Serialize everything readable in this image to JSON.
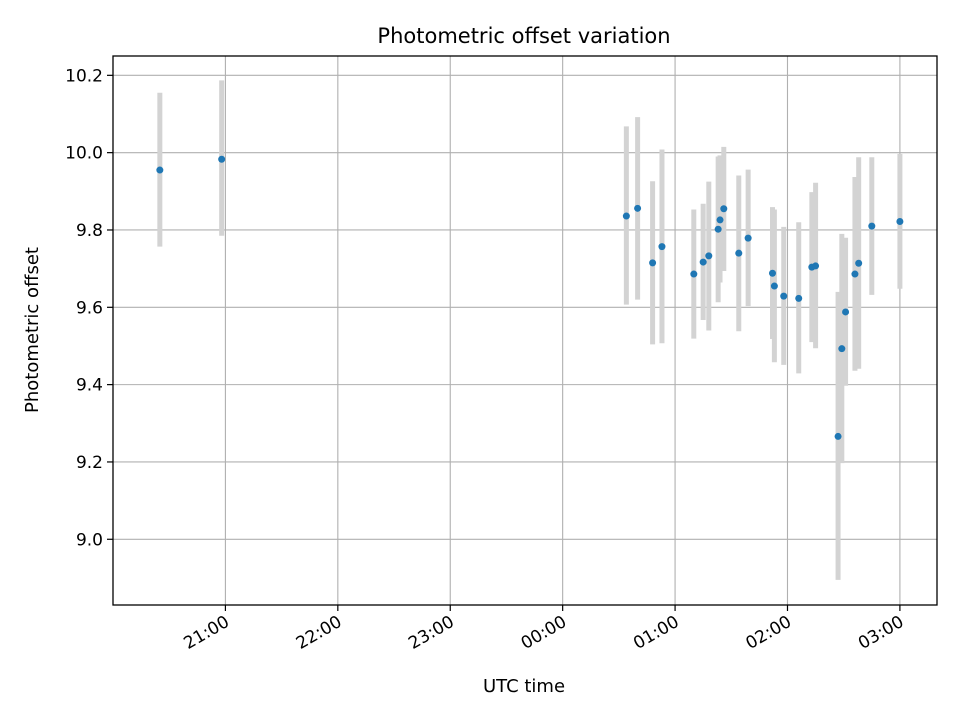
{
  "chart_data": {
    "type": "scatter",
    "title": "Photometric offset variation",
    "xlabel": "UTC time",
    "ylabel": "Photometric offset",
    "x_axis": "time (HH:MM, hours after 20:00 UTC)",
    "xlim_hours": [
      20.0,
      27.33
    ],
    "ylim": [
      8.83,
      10.25
    ],
    "grid": true,
    "colors": {
      "point": "#1f77b4",
      "errorbar": "#d3d3d3",
      "axes": "#000000",
      "grid": "#b0b0b0"
    },
    "x_ticks": [
      {
        "value": 21,
        "label": "21:00"
      },
      {
        "value": 22,
        "label": "22:00"
      },
      {
        "value": 23,
        "label": "23:00"
      },
      {
        "value": 24,
        "label": "00:00"
      },
      {
        "value": 25,
        "label": "01:00"
      },
      {
        "value": 26,
        "label": "02:00"
      },
      {
        "value": 27,
        "label": "03:00"
      }
    ],
    "y_ticks": [
      {
        "value": 9.0,
        "label": "9.0"
      },
      {
        "value": 9.2,
        "label": "9.2"
      },
      {
        "value": 9.4,
        "label": "9.4"
      },
      {
        "value": 9.6,
        "label": "9.6"
      },
      {
        "value": 9.8,
        "label": "9.8"
      },
      {
        "value": 10.0,
        "label": "10.0"
      },
      {
        "value": 10.2,
        "label": "10.2"
      }
    ],
    "points": [
      {
        "t": "20:25",
        "y": 9.955,
        "lo": 9.757,
        "hi": 10.155
      },
      {
        "t": "20:58",
        "y": 9.983,
        "lo": 9.785,
        "hi": 10.187
      },
      {
        "t": "00:34",
        "y": 9.836,
        "lo": 9.607,
        "hi": 10.068
      },
      {
        "t": "00:40",
        "y": 9.856,
        "lo": 9.62,
        "hi": 10.092
      },
      {
        "t": "00:48",
        "y": 9.715,
        "lo": 9.504,
        "hi": 9.926
      },
      {
        "t": "00:53",
        "y": 9.757,
        "lo": 9.507,
        "hi": 10.008
      },
      {
        "t": "01:10",
        "y": 9.686,
        "lo": 9.519,
        "hi": 9.853
      },
      {
        "t": "01:15",
        "y": 9.717,
        "lo": 9.567,
        "hi": 9.868
      },
      {
        "t": "01:18",
        "y": 9.733,
        "lo": 9.54,
        "hi": 9.925
      },
      {
        "t": "01:23",
        "y": 9.802,
        "lo": 9.613,
        "hi": 9.99
      },
      {
        "t": "01:24",
        "y": 9.826,
        "lo": 9.664,
        "hi": 9.993
      },
      {
        "t": "01:26",
        "y": 9.855,
        "lo": 9.694,
        "hi": 10.015
      },
      {
        "t": "01:34",
        "y": 9.74,
        "lo": 9.538,
        "hi": 9.941
      },
      {
        "t": "01:39",
        "y": 9.779,
        "lo": 9.603,
        "hi": 9.956
      },
      {
        "t": "01:52",
        "y": 9.688,
        "lo": 9.518,
        "hi": 9.859
      },
      {
        "t": "01:53",
        "y": 9.655,
        "lo": 9.458,
        "hi": 9.853
      },
      {
        "t": "01:58",
        "y": 9.629,
        "lo": 9.451,
        "hi": 9.808
      },
      {
        "t": "02:06",
        "y": 9.623,
        "lo": 9.429,
        "hi": 9.82
      },
      {
        "t": "02:13",
        "y": 9.704,
        "lo": 9.51,
        "hi": 9.898
      },
      {
        "t": "02:15",
        "y": 9.707,
        "lo": 9.494,
        "hi": 9.922
      },
      {
        "t": "02:27",
        "y": 9.266,
        "lo": 8.895,
        "hi": 9.64
      },
      {
        "t": "02:29",
        "y": 9.493,
        "lo": 9.197,
        "hi": 9.79
      },
      {
        "t": "02:31",
        "y": 9.588,
        "lo": 9.397,
        "hi": 9.78
      },
      {
        "t": "02:36",
        "y": 9.686,
        "lo": 9.436,
        "hi": 9.937
      },
      {
        "t": "02:38",
        "y": 9.714,
        "lo": 9.441,
        "hi": 9.988
      },
      {
        "t": "02:45",
        "y": 9.81,
        "lo": 9.632,
        "hi": 9.988
      },
      {
        "t": "03:00",
        "y": 9.822,
        "lo": 9.648,
        "hi": 9.997
      }
    ]
  }
}
